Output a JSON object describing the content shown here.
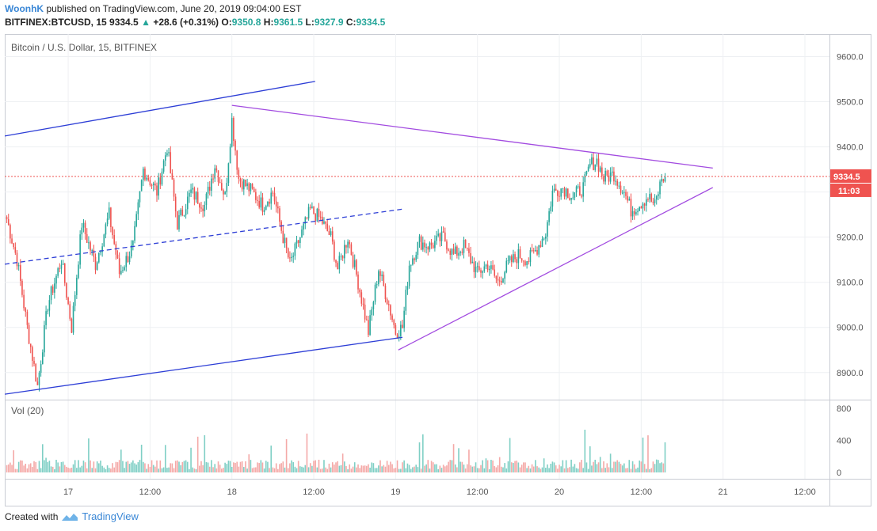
{
  "header": {
    "author": "WoonhK",
    "published_text": "published on TradingView.com, June 20, 2019 09:04:00 EST",
    "symbol": "BITFINEX:BTCUSD, 15",
    "last": "9334.5",
    "change_arrow": "▲",
    "change": "+28.6 (+0.31%)",
    "o_label": "O:",
    "o_value": "9350.8",
    "h_label": "H:",
    "h_value": "9361.5",
    "l_label": "L:",
    "l_value": "9327.9",
    "c_label": "C:",
    "c_value": "9334.5"
  },
  "footer": {
    "created_with": "Created with",
    "brand": "TradingView",
    "logo_icon": "tradingview-logo-icon"
  },
  "colors": {
    "up": "#26a69a",
    "down": "#ef5350",
    "up_vol": "#7fcfc5",
    "down_vol": "#f4a9a7",
    "trend_blue": "#2d3ed6",
    "trend_purple": "#a24be0",
    "last_price_bg": "#ef5350"
  },
  "chart_data": {
    "type": "candlestick",
    "title": "Bitcoin / U.S. Dollar, 15, BITFINEX",
    "timeframe": "15",
    "ylim": [
      8840,
      9650
    ],
    "y_ticks": [
      "9600.0",
      "9500.0",
      "9400.0",
      "9300.0",
      "9200.0",
      "9100.0",
      "9000.0",
      "8900.0"
    ],
    "y_tick_values": [
      9600,
      9500,
      9400,
      9300,
      9200,
      9100,
      9000,
      8900
    ],
    "x_ticks": [
      "17",
      "12:00",
      "18",
      "12:00",
      "19",
      "12:00",
      "20",
      "12:00",
      "21",
      "12:00"
    ],
    "x_tick_hours": [
      24,
      36,
      48,
      60,
      72,
      84,
      96,
      108,
      120,
      132
    ],
    "x_range_hours": [
      14.7,
      135.6
    ],
    "last_price_label": "9334.5",
    "last_price": 9334.5,
    "countdown_label": "11:03",
    "anchors": [
      [
        15.0,
        9240
      ],
      [
        16.5,
        9150
      ],
      [
        18.0,
        9000
      ],
      [
        19.5,
        8870
      ],
      [
        21.0,
        9050
      ],
      [
        23.0,
        9150
      ],
      [
        24.5,
        9000
      ],
      [
        26.0,
        9230
      ],
      [
        28.0,
        9140
      ],
      [
        30.0,
        9250
      ],
      [
        31.5,
        9120
      ],
      [
        33.5,
        9180
      ],
      [
        35.0,
        9350
      ],
      [
        37.0,
        9300
      ],
      [
        38.5,
        9400
      ],
      [
        40.0,
        9230
      ],
      [
        42.0,
        9300
      ],
      [
        44.0,
        9270
      ],
      [
        45.5,
        9360
      ],
      [
        47.0,
        9290
      ],
      [
        48.0,
        9460
      ],
      [
        49.0,
        9330
      ],
      [
        51.0,
        9300
      ],
      [
        52.5,
        9270
      ],
      [
        54.0,
        9300
      ],
      [
        55.5,
        9200
      ],
      [
        56.5,
        9140
      ],
      [
        58.0,
        9200
      ],
      [
        59.5,
        9260
      ],
      [
        61.0,
        9240
      ],
      [
        62.5,
        9200
      ],
      [
        63.5,
        9130
      ],
      [
        65.0,
        9200
      ],
      [
        66.5,
        9100
      ],
      [
        68.0,
        8990
      ],
      [
        69.5,
        9130
      ],
      [
        71.0,
        9050
      ],
      [
        72.0,
        8990
      ],
      [
        73.0,
        9000
      ],
      [
        74.0,
        9140
      ],
      [
        75.5,
        9190
      ],
      [
        77.0,
        9180
      ],
      [
        79.0,
        9200
      ],
      [
        80.5,
        9160
      ],
      [
        82.0,
        9180
      ],
      [
        84.0,
        9120
      ],
      [
        85.5,
        9140
      ],
      [
        87.0,
        9100
      ],
      [
        88.5,
        9140
      ],
      [
        90.0,
        9160
      ],
      [
        91.5,
        9150
      ],
      [
        92.5,
        9170
      ],
      [
        94.0,
        9210
      ],
      [
        95.0,
        9300
      ],
      [
        96.5,
        9310
      ],
      [
        98.0,
        9290
      ],
      [
        99.5,
        9310
      ],
      [
        100.5,
        9360
      ],
      [
        101.5,
        9370
      ],
      [
        102.5,
        9330
      ],
      [
        104.0,
        9340
      ],
      [
        105.5,
        9300
      ],
      [
        106.5,
        9260
      ],
      [
        107.5,
        9270
      ],
      [
        109.0,
        9290
      ],
      [
        110.0,
        9270
      ],
      [
        111.0,
        9330
      ],
      [
        111.6,
        9334.5
      ]
    ],
    "volume": {
      "title": "Vol (20)",
      "ylim": [
        0,
        900
      ],
      "y_ticks": [
        "800",
        "400",
        "0"
      ],
      "y_tick_values": [
        800,
        400,
        0
      ]
    },
    "trendlines": [
      {
        "color": "blue",
        "style": "solid",
        "from": [
          14.7,
          9424
        ],
        "to": [
          60.2,
          9545
        ]
      },
      {
        "color": "blue",
        "style": "solid",
        "from": [
          14.7,
          8852
        ],
        "to": [
          73.0,
          8978
        ]
      },
      {
        "color": "blue",
        "style": "dashed",
        "from": [
          14.7,
          9140
        ],
        "to": [
          73.0,
          9262
        ]
      },
      {
        "color": "purple",
        "style": "solid",
        "from": [
          48.0,
          9492
        ],
        "to": [
          118.5,
          9353
        ]
      },
      {
        "color": "purple",
        "style": "solid",
        "from": [
          72.4,
          8950
        ],
        "to": [
          118.5,
          9310
        ]
      }
    ]
  }
}
